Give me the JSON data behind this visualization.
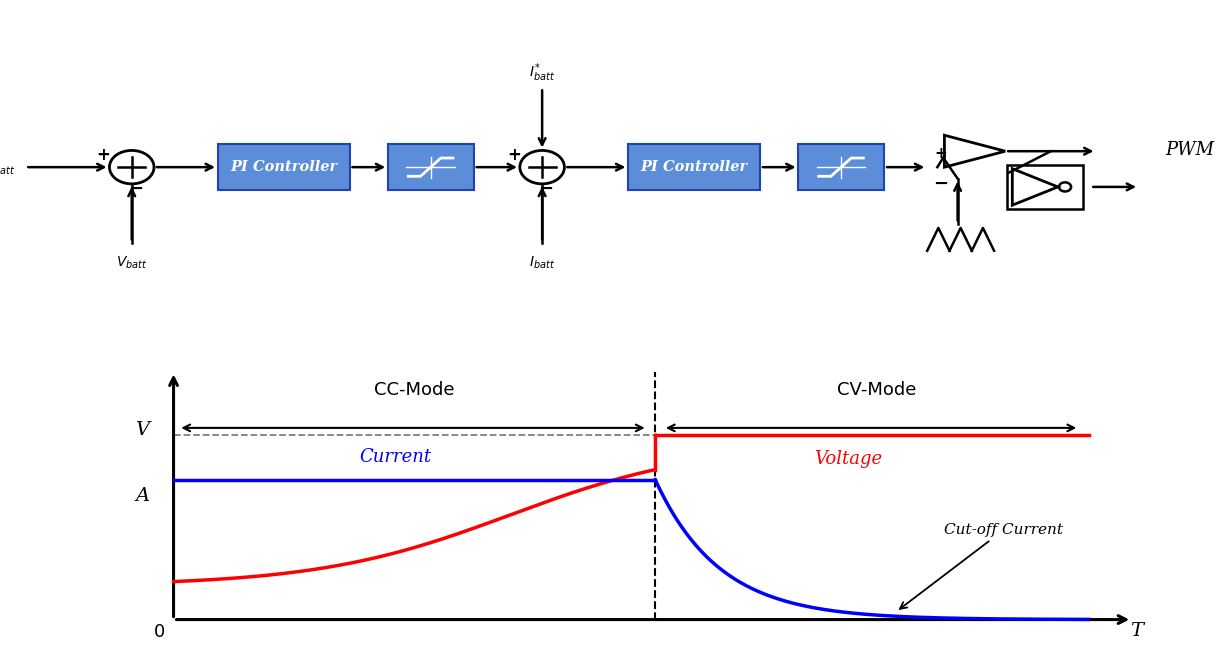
{
  "bg_color": "#ffffff",
  "block_color": "#5b8dd9",
  "block_text_color": "#ffffff",
  "block_border_color": "#2244aa",
  "cc_mode_label": "CC-Mode",
  "cv_mode_label": "CV-Mode",
  "current_label": "Current",
  "voltage_label": "Voltage",
  "cutoff_label": "Cut-off Current",
  "V_label": "V",
  "A_label": "A",
  "zero_label": "0",
  "T_label": "T",
  "PWM_label": "PWM",
  "Vbatt_ref_label": "$V^{*}_{batt}$",
  "Vbatt_label": "$V_{batt}$",
  "Ibatt_ref_label": "$I^{*}_{batt}$",
  "Ibatt_label": "$I_{batt}$",
  "PI_label": "PI Controller"
}
